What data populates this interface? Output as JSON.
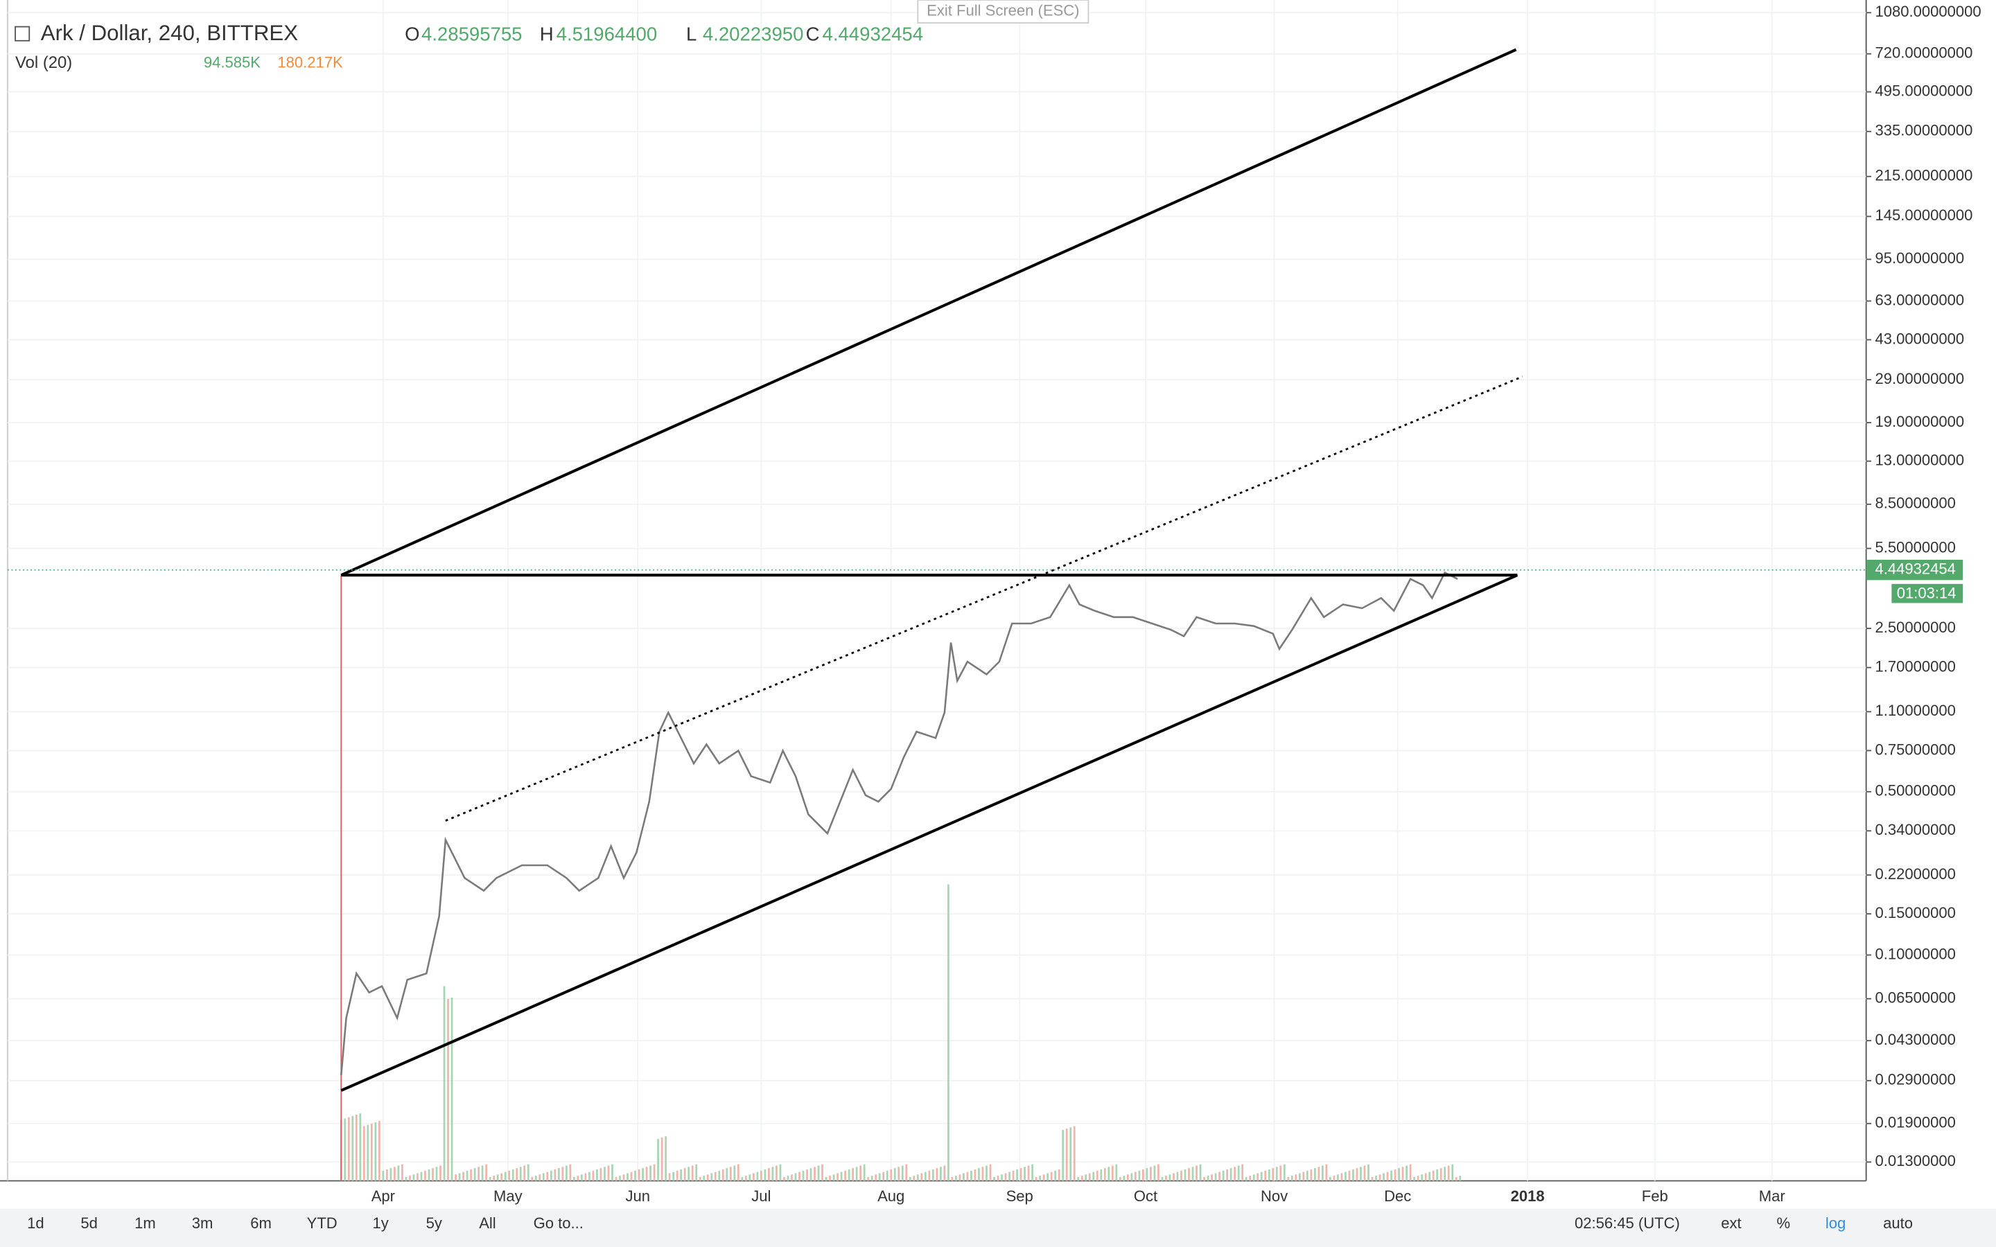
{
  "header": {
    "symbol": "Ark / Dollar, 240, BITTREX",
    "ohlc": [
      {
        "key": "O",
        "value": "4.28595755"
      },
      {
        "key": "H",
        "value": "4.51964400"
      },
      {
        "key": "L",
        "value": "4.20223950"
      },
      {
        "key": "C",
        "value": "4.44932454"
      }
    ],
    "volume": {
      "label": "Vol (20)",
      "values": [
        "94.585K",
        "180.217K"
      ]
    },
    "exit": "Exit Full Screen (ESC)"
  },
  "chart_data": {
    "type": "candlestick",
    "log_scale": true,
    "grid": true,
    "ylim": [
      0.0108,
      1224
    ],
    "yticks": [
      {
        "value": 1080,
        "label": "1080.00000000"
      },
      {
        "value": 720,
        "label": "720.00000000"
      },
      {
        "value": 495,
        "label": "495.00000000"
      },
      {
        "value": 335,
        "label": "335.00000000"
      },
      {
        "value": 215,
        "label": "215.00000000"
      },
      {
        "value": 145,
        "label": "145.00000000"
      },
      {
        "value": 95,
        "label": "95.00000000"
      },
      {
        "value": 63,
        "label": "63.00000000"
      },
      {
        "value": 43,
        "label": "43.00000000"
      },
      {
        "value": 29,
        "label": "29.00000000"
      },
      {
        "value": 19,
        "label": "19.00000000"
      },
      {
        "value": 13,
        "label": "13.00000000"
      },
      {
        "value": 8.5,
        "label": "8.50000000"
      },
      {
        "value": 5.5,
        "label": "5.50000000"
      },
      {
        "value": 2.5,
        "label": "2.50000000"
      },
      {
        "value": 1.7,
        "label": "1.70000000"
      },
      {
        "value": 1.1,
        "label": "1.10000000"
      },
      {
        "value": 0.75,
        "label": "0.75000000"
      },
      {
        "value": 0.5,
        "label": "0.50000000"
      },
      {
        "value": 0.34,
        "label": "0.34000000"
      },
      {
        "value": 0.22,
        "label": "0.22000000"
      },
      {
        "value": 0.15,
        "label": "0.15000000"
      },
      {
        "value": 0.1,
        "label": "0.10000000"
      },
      {
        "value": 0.065,
        "label": "0.06500000"
      },
      {
        "value": 0.043,
        "label": "0.04300000"
      },
      {
        "value": 0.029,
        "label": "0.02900000"
      },
      {
        "value": 0.019,
        "label": "0.01900000"
      },
      {
        "value": 0.013,
        "label": "0.01300000"
      }
    ],
    "categories": [
      "Apr",
      "May",
      "Jun",
      "Jul",
      "Aug",
      "Sep",
      "Oct",
      "Nov",
      "Dec",
      "2018",
      "Feb",
      "Mar"
    ],
    "last_price": {
      "value": 4.44932454,
      "label": "4.44932454"
    },
    "countdown": "01:03:14"
  },
  "toolbar": {
    "ranges": [
      "1d",
      "5d",
      "1m",
      "3m",
      "6m",
      "YTD",
      "1y",
      "5y",
      "All"
    ],
    "goto": "Go to...",
    "time": "02:56:45 (UTC)",
    "options": [
      "ext",
      "%",
      "log",
      "auto"
    ]
  }
}
